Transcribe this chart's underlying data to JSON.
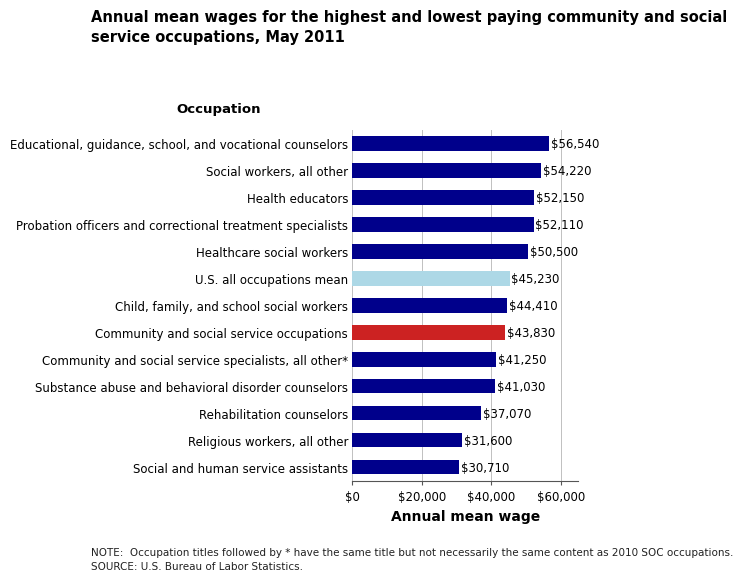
{
  "title": "Annual mean wages for the highest and lowest paying community and social\nservice occupations, May 2011",
  "xlabel": "Annual mean wage",
  "ylabel": "Occupation",
  "categories": [
    "Social and human service assistants",
    "Religious workers, all other",
    "Rehabilitation counselors",
    "Substance abuse and behavioral disorder counselors",
    "Community and social service specialists, all other*",
    "Community and social service occupations",
    "Child, family, and school social workers",
    "U.S. all occupations mean",
    "Healthcare social workers",
    "Probation officers and correctional treatment specialists",
    "Health educators",
    "Social workers, all other",
    "Educational, guidance, school, and vocational counselors"
  ],
  "values": [
    30710,
    31600,
    37070,
    41030,
    41250,
    43830,
    44410,
    45230,
    50500,
    52110,
    52150,
    54220,
    56540
  ],
  "bar_colors": [
    "#00008B",
    "#00008B",
    "#00008B",
    "#00008B",
    "#00008B",
    "#CC2222",
    "#00008B",
    "#ADD8E6",
    "#00008B",
    "#00008B",
    "#00008B",
    "#00008B",
    "#00008B"
  ],
  "value_labels": [
    "$30,710",
    "$31,600",
    "$37,070",
    "$41,030",
    "$41,250",
    "$43,830",
    "$44,410",
    "$45,230",
    "$50,500",
    "$52,110",
    "$52,150",
    "$54,220",
    "$56,540"
  ],
  "xlim": [
    0,
    60000
  ],
  "xtick_values": [
    0,
    20000,
    40000,
    60000
  ],
  "xtick_labels": [
    "$0",
    "$20,000",
    "$40,000",
    "$60,000"
  ],
  "note_line1": "NOTE:  Occupation titles followed by * have the same title but not necessarily the same content as 2010 SOC occupations.",
  "note_line2": "SOURCE: U.S. Bureau of Labor Statistics.",
  "bg_color": "#FFFFFF",
  "title_fontsize": 10.5,
  "label_fontsize": 8.5,
  "tick_fontsize": 8.5,
  "note_fontsize": 7.5,
  "occupation_header_fontsize": 9.5,
  "xlabel_fontsize": 10,
  "bar_height": 0.55
}
